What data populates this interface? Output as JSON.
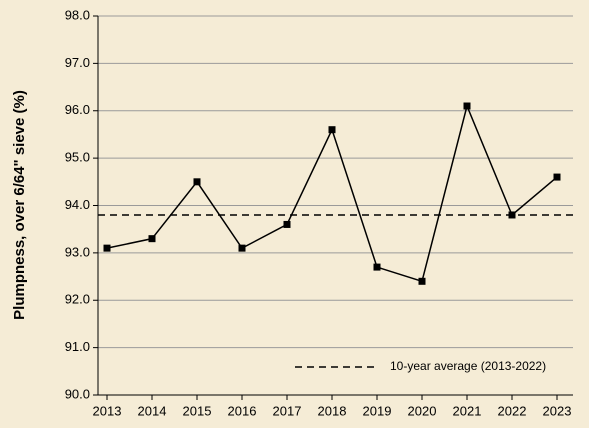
{
  "chart_data": {
    "type": "line",
    "y_label": "Plumpness, over 6/64\" sieve (%)",
    "categories": [
      "2013",
      "2014",
      "2015",
      "2016",
      "2017",
      "2018",
      "2019",
      "2020",
      "2021",
      "2022",
      "2023"
    ],
    "series": [
      {
        "color": "#000000",
        "values": [
          93.1,
          93.3,
          94.5,
          93.1,
          93.6,
          95.6,
          92.7,
          92.4,
          96.1,
          93.8,
          94.6
        ]
      }
    ],
    "reference_line": {
      "value": 93.8,
      "label": "10-year average (2013-2022)"
    },
    "ylim": [
      90,
      98
    ],
    "yticks": [
      {
        "value": 90,
        "label": "90.0"
      },
      {
        "value": 91,
        "label": "91.0"
      },
      {
        "value": 92,
        "label": "92.0"
      },
      {
        "value": 93,
        "label": "93.0"
      },
      {
        "value": 94,
        "label": "94.0"
      },
      {
        "value": 95,
        "label": "95.0"
      },
      {
        "value": 96,
        "label": "96.0"
      },
      {
        "value": 97,
        "label": "97.0"
      },
      {
        "value": 98,
        "label": "98.0"
      }
    ],
    "grid": true
  }
}
